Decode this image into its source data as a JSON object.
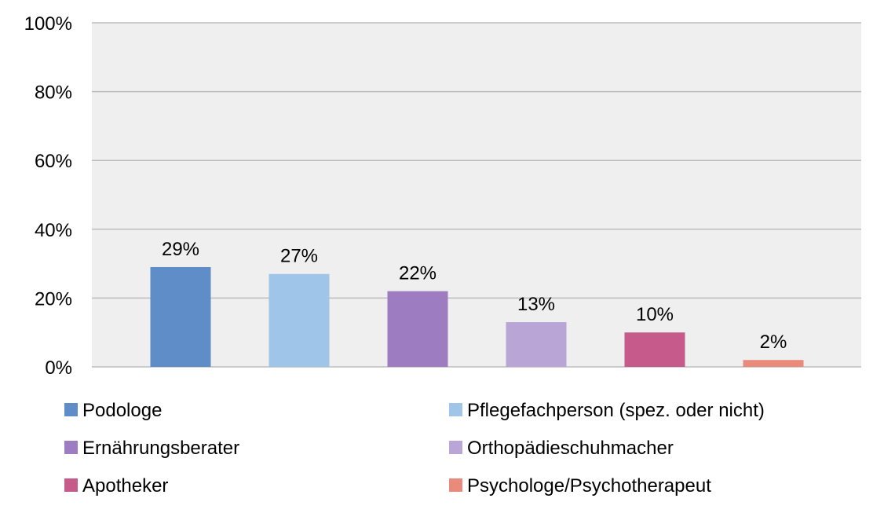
{
  "chart_data": {
    "type": "bar",
    "title": "",
    "xlabel": "",
    "ylabel": "",
    "categories": [
      "Podologe",
      "Pflegefachperson (spez. oder nicht)",
      "Ernährungsberater",
      "Orthopädieschuhmacher",
      "Apotheker",
      "Psychologe/Psychotherapeut"
    ],
    "values": [
      29,
      27,
      22,
      13,
      10,
      2
    ],
    "value_labels": [
      "29%",
      "27%",
      "22%",
      "13%",
      "10%",
      "2%"
    ],
    "colors": [
      "#5f8dc7",
      "#9fc5e8",
      "#9e7cc1",
      "#b9a6d6",
      "#c55a8b",
      "#ea8a7a"
    ],
    "ylim": [
      0,
      100
    ],
    "yticks": [
      0,
      20,
      40,
      60,
      80,
      100
    ],
    "ytick_labels": [
      "0%",
      "20%",
      "40%",
      "60%",
      "80%",
      "100%"
    ],
    "grid": true,
    "plot_background": "#efefef",
    "gridline_color": "#bdbdbd",
    "legend_position": "bottom"
  }
}
